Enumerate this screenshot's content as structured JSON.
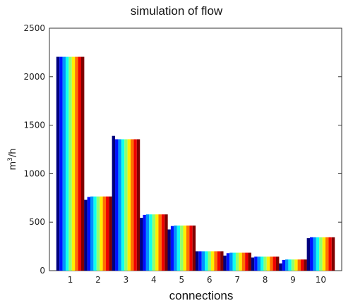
{
  "chart_data": {
    "type": "bar",
    "title": "simulation of flow",
    "xlabel": "connections",
    "ylabel_base": "m",
    "ylabel_exp": "3",
    "ylabel_rest": "/h",
    "ylim": [
      0,
      2500
    ],
    "yticks": [
      "0",
      "500",
      "1000",
      "1500",
      "2000",
      "2500"
    ],
    "ytick_values": [
      0,
      500,
      1000,
      1500,
      2000,
      2500
    ],
    "categories": [
      "1",
      "2",
      "3",
      "4",
      "5",
      "6",
      "7",
      "8",
      "9",
      "10"
    ],
    "series_colors": [
      "#00007f",
      "#0010ff",
      "#0090ff",
      "#10ffef",
      "#90ff70",
      "#ffef00",
      "#ff7000",
      "#ef0000",
      "#7f0000"
    ],
    "series": [
      {
        "values": [
          2205,
          730,
          1390,
          545,
          425,
          200,
          155,
          135,
          75,
          335
        ]
      },
      {
        "values": [
          2205,
          760,
          1355,
          575,
          460,
          200,
          180,
          145,
          110,
          345
        ]
      },
      {
        "values": [
          2205,
          765,
          1355,
          580,
          465,
          200,
          185,
          145,
          115,
          345
        ]
      },
      {
        "values": [
          2205,
          765,
          1355,
          580,
          465,
          200,
          185,
          145,
          115,
          345
        ]
      },
      {
        "values": [
          2205,
          765,
          1355,
          580,
          465,
          200,
          185,
          145,
          115,
          345
        ]
      },
      {
        "values": [
          2205,
          765,
          1355,
          580,
          465,
          200,
          185,
          145,
          115,
          345
        ]
      },
      {
        "values": [
          2205,
          765,
          1355,
          580,
          465,
          200,
          185,
          145,
          115,
          345
        ]
      },
      {
        "values": [
          2205,
          765,
          1355,
          580,
          465,
          200,
          185,
          145,
          115,
          345
        ]
      },
      {
        "values": [
          2205,
          765,
          1355,
          580,
          465,
          200,
          185,
          145,
          115,
          345
        ]
      }
    ],
    "grid": false,
    "legend": "none"
  }
}
